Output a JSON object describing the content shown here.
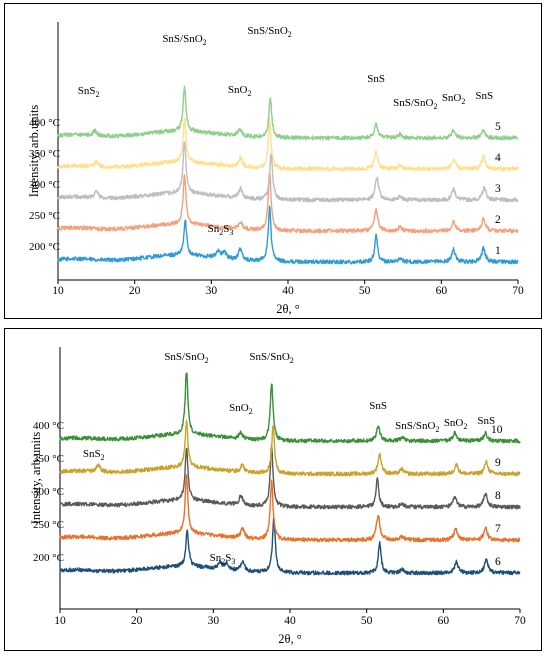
{
  "chart_data": [
    {
      "type": "line",
      "title": "",
      "xlabel": "2θ, °",
      "ylabel": "Intensity, arb.units",
      "xlim": [
        10,
        70
      ],
      "x_ticks": [
        "10",
        "20",
        "30",
        "40",
        "50",
        "60",
        "70"
      ],
      "grid": false,
      "legend": "none",
      "series": [
        {
          "name": "1",
          "label": "200 °C",
          "color": "#2e9bd6",
          "offset": 0,
          "peaks": [
            [
              26.6,
              2.8
            ],
            [
              30.9,
              0.6
            ],
            [
              31.7,
              0.5
            ],
            [
              33.8,
              0.9
            ],
            [
              37.6,
              4.4
            ],
            [
              51.5,
              2.2
            ],
            [
              54.6,
              0.3
            ],
            [
              61.6,
              1.0
            ],
            [
              65.5,
              1.1
            ]
          ]
        },
        {
          "name": "2",
          "label": "250 °C",
          "color": "#f4a07a",
          "offset": 1,
          "peaks": [
            [
              26.5,
              4.0
            ],
            [
              33.8,
              0.6
            ],
            [
              37.6,
              4.8
            ],
            [
              51.5,
              1.7
            ],
            [
              54.6,
              0.3
            ],
            [
              61.6,
              0.8
            ],
            [
              65.5,
              1.0
            ]
          ]
        },
        {
          "name": "3",
          "label": "300 °C",
          "color": "#bdbdbd",
          "offset": 2,
          "peaks": [
            [
              15.0,
              0.5
            ],
            [
              26.5,
              4.3
            ],
            [
              33.8,
              0.8
            ],
            [
              37.8,
              3.8
            ],
            [
              51.6,
              1.8
            ],
            [
              54.6,
              0.3
            ],
            [
              61.6,
              0.9
            ],
            [
              65.6,
              1.0
            ]
          ]
        },
        {
          "name": "4",
          "label": "350 °C",
          "color": "#ffe08a",
          "offset": 3,
          "peaks": [
            [
              15.0,
              0.4
            ],
            [
              26.5,
              3.6
            ],
            [
              33.8,
              0.8
            ],
            [
              37.6,
              3.9
            ],
            [
              51.5,
              1.4
            ],
            [
              54.6,
              0.3
            ],
            [
              61.6,
              0.8
            ],
            [
              65.5,
              1.0
            ]
          ]
        },
        {
          "name": "5",
          "label": "400 °C",
          "color": "#8ed08b",
          "offset": 4,
          "peaks": [
            [
              14.8,
              0.4
            ],
            [
              26.5,
              3.6
            ],
            [
              33.7,
              0.6
            ],
            [
              37.7,
              3.2
            ],
            [
              51.5,
              1.1
            ],
            [
              54.6,
              0.3
            ],
            [
              61.6,
              0.6
            ],
            [
              65.5,
              0.6
            ]
          ]
        }
      ],
      "annotations": [
        {
          "text": "SnS/SnO",
          "sub": "2",
          "x": 26.5
        },
        {
          "text": "SnS/SnO",
          "sub": "2",
          "x": 37.6
        },
        {
          "text": "SnO",
          "sub": "2",
          "x": 33.7
        },
        {
          "text": "SnS",
          "sub": "",
          "x": 51.5
        },
        {
          "text": "SnS/SnO",
          "sub": "2",
          "x": 56.6
        },
        {
          "text": "SnO",
          "sub": "2",
          "x": 61.6
        },
        {
          "text": "SnS",
          "sub": "",
          "x": 65.6
        },
        {
          "text": "SnS",
          "sub": "2",
          "x": 14.0
        },
        {
          "text": "Sn",
          "sub": "2",
          "text2": "S",
          "sub2": "3",
          "x": 31.2
        }
      ]
    },
    {
      "type": "line",
      "title": "",
      "xlabel": "2θ, °",
      "ylabel": "Intensity, arb.units",
      "xlim": [
        10,
        70
      ],
      "x_ticks": [
        "10",
        "20",
        "30",
        "40",
        "50",
        "60",
        "70"
      ],
      "grid": false,
      "legend": "none",
      "series": [
        {
          "name": "6",
          "label": "200 °C",
          "color": "#1f4e79",
          "offset": 0,
          "peaks": [
            [
              26.6,
              3.0
            ],
            [
              30.9,
              0.5
            ],
            [
              31.7,
              0.5
            ],
            [
              33.8,
              0.8
            ],
            [
              37.9,
              4.5
            ],
            [
              51.7,
              2.5
            ],
            [
              54.6,
              0.3
            ],
            [
              61.7,
              0.9
            ],
            [
              65.6,
              1.1
            ]
          ]
        },
        {
          "name": "7",
          "label": "250 °C",
          "color": "#e8702a",
          "offset": 1,
          "peaks": [
            [
              26.5,
              4.8
            ],
            [
              33.8,
              0.8
            ],
            [
              37.6,
              4.8
            ],
            [
              51.5,
              2.0
            ],
            [
              54.6,
              0.3
            ],
            [
              61.6,
              0.9
            ],
            [
              65.5,
              1.0
            ]
          ]
        },
        {
          "name": "8",
          "label": "300 °C",
          "color": "#595959",
          "offset": 2,
          "peaks": [
            [
              26.5,
              4.4
            ],
            [
              33.6,
              0.8
            ],
            [
              37.6,
              5.0
            ],
            [
              51.4,
              2.3
            ],
            [
              54.6,
              0.3
            ],
            [
              61.5,
              0.8
            ],
            [
              65.5,
              1.1
            ]
          ]
        },
        {
          "name": "9",
          "label": "350 °C",
          "color": "#c9a227",
          "offset": 3,
          "peaks": [
            [
              15.0,
              0.6
            ],
            [
              26.5,
              3.8
            ],
            [
              33.8,
              0.6
            ],
            [
              37.8,
              4.0
            ],
            [
              51.7,
              1.6
            ],
            [
              54.6,
              0.4
            ],
            [
              61.7,
              0.8
            ],
            [
              65.6,
              1.0
            ]
          ]
        },
        {
          "name": "10",
          "label": "400 °C",
          "color": "#3a8f3a",
          "offset": 4,
          "peaks": [
            [
              26.5,
              5.2
            ],
            [
              33.6,
              0.5
            ],
            [
              37.6,
              4.8
            ],
            [
              51.5,
              1.2
            ],
            [
              54.6,
              0.3
            ],
            [
              61.5,
              0.7
            ],
            [
              65.5,
              0.7
            ]
          ]
        }
      ],
      "annotations": [
        {
          "text": "SnS/SnO",
          "sub": "2",
          "x": 26.5
        },
        {
          "text": "SnS/SnO",
          "sub": "2",
          "x": 37.6
        },
        {
          "text": "SnO",
          "sub": "2",
          "x": 33.6
        },
        {
          "text": "SnS",
          "sub": "",
          "x": 51.5
        },
        {
          "text": "SnS/SnO",
          "sub": "2",
          "x": 56.6
        },
        {
          "text": "SnO",
          "sub": "2",
          "x": 61.6
        },
        {
          "text": "SnS",
          "sub": "",
          "x": 65.6
        },
        {
          "text": "SnS",
          "sub": "2",
          "x": 14.4
        },
        {
          "text": "Sn",
          "sub": "2",
          "text2": "S",
          "sub2": "3",
          "x": 31.2
        }
      ]
    }
  ]
}
